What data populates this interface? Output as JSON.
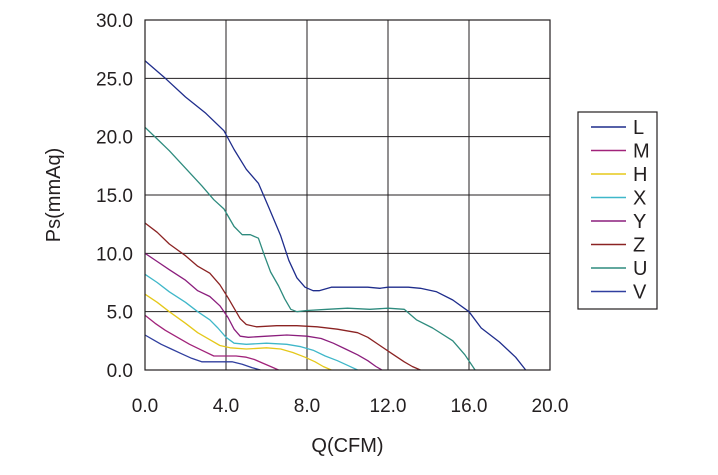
{
  "chart_data": {
    "type": "line",
    "title": "",
    "xlabel": "Q(CFM)",
    "ylabel": "Ps(mmAq)",
    "xlim": [
      0,
      20
    ],
    "ylim": [
      0,
      30
    ],
    "xticks": [
      0,
      4,
      8,
      12,
      16,
      20
    ],
    "yticks": [
      0,
      5,
      10,
      15,
      20,
      25,
      30
    ],
    "xtick_labels": [
      "0.0",
      "4.0",
      "8.0",
      "12.0",
      "16.0",
      "20.0"
    ],
    "ytick_labels": [
      "0.0",
      "5.0",
      "10.0",
      "15.0",
      "20.0",
      "25.0",
      "30.0"
    ],
    "grid": true,
    "legend_position": "right",
    "series": [
      {
        "name": "L",
        "color": "#1f2d8c",
        "x": [
          0,
          1,
          2,
          3,
          3.9,
          4.4,
          5,
          5.6,
          6.1,
          6.7,
          7.1,
          7.5,
          7.9,
          8.3,
          8.6,
          9.2,
          9.8,
          11,
          11.6,
          12,
          13,
          13.6,
          14.4,
          15.2,
          16,
          16.6,
          17.5,
          18.3,
          18.8
        ],
        "y": [
          26.5,
          25,
          23.4,
          22,
          20.5,
          18.9,
          17.2,
          16,
          14,
          11.5,
          9.4,
          7.9,
          7.1,
          6.8,
          6.8,
          7.1,
          7.1,
          7.1,
          7,
          7.1,
          7.1,
          7,
          6.7,
          6,
          5,
          3.6,
          2.4,
          1.1,
          0
        ]
      },
      {
        "name": "U",
        "color": "#2e8b7e",
        "x": [
          0,
          0.6,
          1.2,
          2,
          2.8,
          3.4,
          3.9,
          4.4,
          4.8,
          5.2,
          5.6,
          5.9,
          6.2,
          6.6,
          6.9,
          7.2,
          7.5,
          8,
          9,
          10,
          11.1,
          12,
          12.8,
          13.4,
          14.2,
          15.2,
          15.8,
          16.3
        ],
        "y": [
          20.8,
          19.8,
          18.8,
          17.3,
          15.8,
          14.6,
          13.8,
          12.3,
          11.6,
          11.6,
          11.3,
          9.8,
          8.4,
          7.2,
          6.1,
          5.2,
          5,
          5.1,
          5.2,
          5.3,
          5.2,
          5.3,
          5.2,
          4.3,
          3.6,
          2.5,
          1.3,
          0
        ]
      },
      {
        "name": "Z",
        "color": "#8b2323",
        "x": [
          0,
          0.6,
          1.2,
          2,
          2.6,
          3.2,
          3.7,
          4.1,
          4.4,
          4.7,
          5,
          5.5,
          6.5,
          7.5,
          8.5,
          9.5,
          10.5,
          11,
          11.6,
          12.2,
          12.8,
          13.2,
          13.6
        ],
        "y": [
          12.6,
          11.8,
          10.8,
          9.8,
          8.9,
          8.3,
          7.3,
          6.2,
          5.3,
          4.4,
          3.9,
          3.7,
          3.8,
          3.8,
          3.7,
          3.5,
          3.2,
          2.8,
          2.1,
          1.4,
          0.7,
          0.3,
          0
        ]
      },
      {
        "name": "Y",
        "color": "#8b1e7d",
        "x": [
          0,
          0.6,
          1.2,
          2,
          2.6,
          3.2,
          3.7,
          4.1,
          4.4,
          4.7,
          5.1,
          6,
          7,
          8,
          8.7,
          9.3,
          9.9,
          10.5,
          11,
          11.4,
          11.7
        ],
        "y": [
          10,
          9.3,
          8.6,
          7.7,
          6.8,
          6.3,
          5.5,
          4.5,
          3.5,
          2.9,
          2.8,
          2.9,
          3,
          2.9,
          2.7,
          2.3,
          1.8,
          1.3,
          0.8,
          0.3,
          0
        ]
      },
      {
        "name": "X",
        "color": "#3fb7c9",
        "x": [
          0,
          0.6,
          1.2,
          2,
          2.6,
          3.2,
          3.6,
          4,
          4.4,
          5,
          6,
          7,
          7.7,
          8.3,
          8.9,
          9.5,
          10,
          10.5
        ],
        "y": [
          8.2,
          7.5,
          6.7,
          5.8,
          5,
          4.3,
          3.6,
          2.8,
          2.3,
          2.2,
          2.3,
          2.2,
          2,
          1.7,
          1.2,
          0.8,
          0.4,
          0
        ]
      },
      {
        "name": "H",
        "color": "#e5c81a",
        "x": [
          0,
          0.6,
          1.2,
          2,
          2.6,
          3.2,
          3.7,
          4.2,
          5,
          6,
          6.7,
          7.3,
          7.9,
          8.4,
          8.8,
          9.2
        ],
        "y": [
          6.5,
          5.8,
          5,
          4,
          3.2,
          2.6,
          2.1,
          1.9,
          1.8,
          1.9,
          1.8,
          1.5,
          1.1,
          0.7,
          0.3,
          0
        ]
      },
      {
        "name": "M",
        "color": "#a1237a",
        "x": [
          0,
          0.5,
          1,
          1.6,
          2.2,
          2.8,
          3.4,
          4,
          4.5,
          5,
          5.4,
          5.8,
          6.2,
          6.6
        ],
        "y": [
          4.7,
          4,
          3.4,
          2.8,
          2.2,
          1.7,
          1.2,
          1.2,
          1.2,
          1.1,
          0.9,
          0.6,
          0.3,
          0
        ]
      },
      {
        "name": "V",
        "color": "#303f9f",
        "x": [
          0,
          0.4,
          0.8,
          1.3,
          1.8,
          2.3,
          2.8,
          3.3,
          3.8,
          4.3,
          4.8,
          5.3,
          5.7
        ],
        "y": [
          3,
          2.6,
          2.2,
          1.8,
          1.4,
          1,
          0.7,
          0.7,
          0.7,
          0.7,
          0.5,
          0.2,
          0
        ]
      }
    ],
    "legend_order": [
      "L",
      "M",
      "H",
      "X",
      "Y",
      "Z",
      "U",
      "V"
    ],
    "legend_colors": {
      "L": "#1f2d8c",
      "M": "#a1237a",
      "H": "#e5c81a",
      "X": "#3fb7c9",
      "Y": "#8b1e7d",
      "Z": "#8b2323",
      "U": "#2e8b7e",
      "V": "#303f9f"
    }
  }
}
